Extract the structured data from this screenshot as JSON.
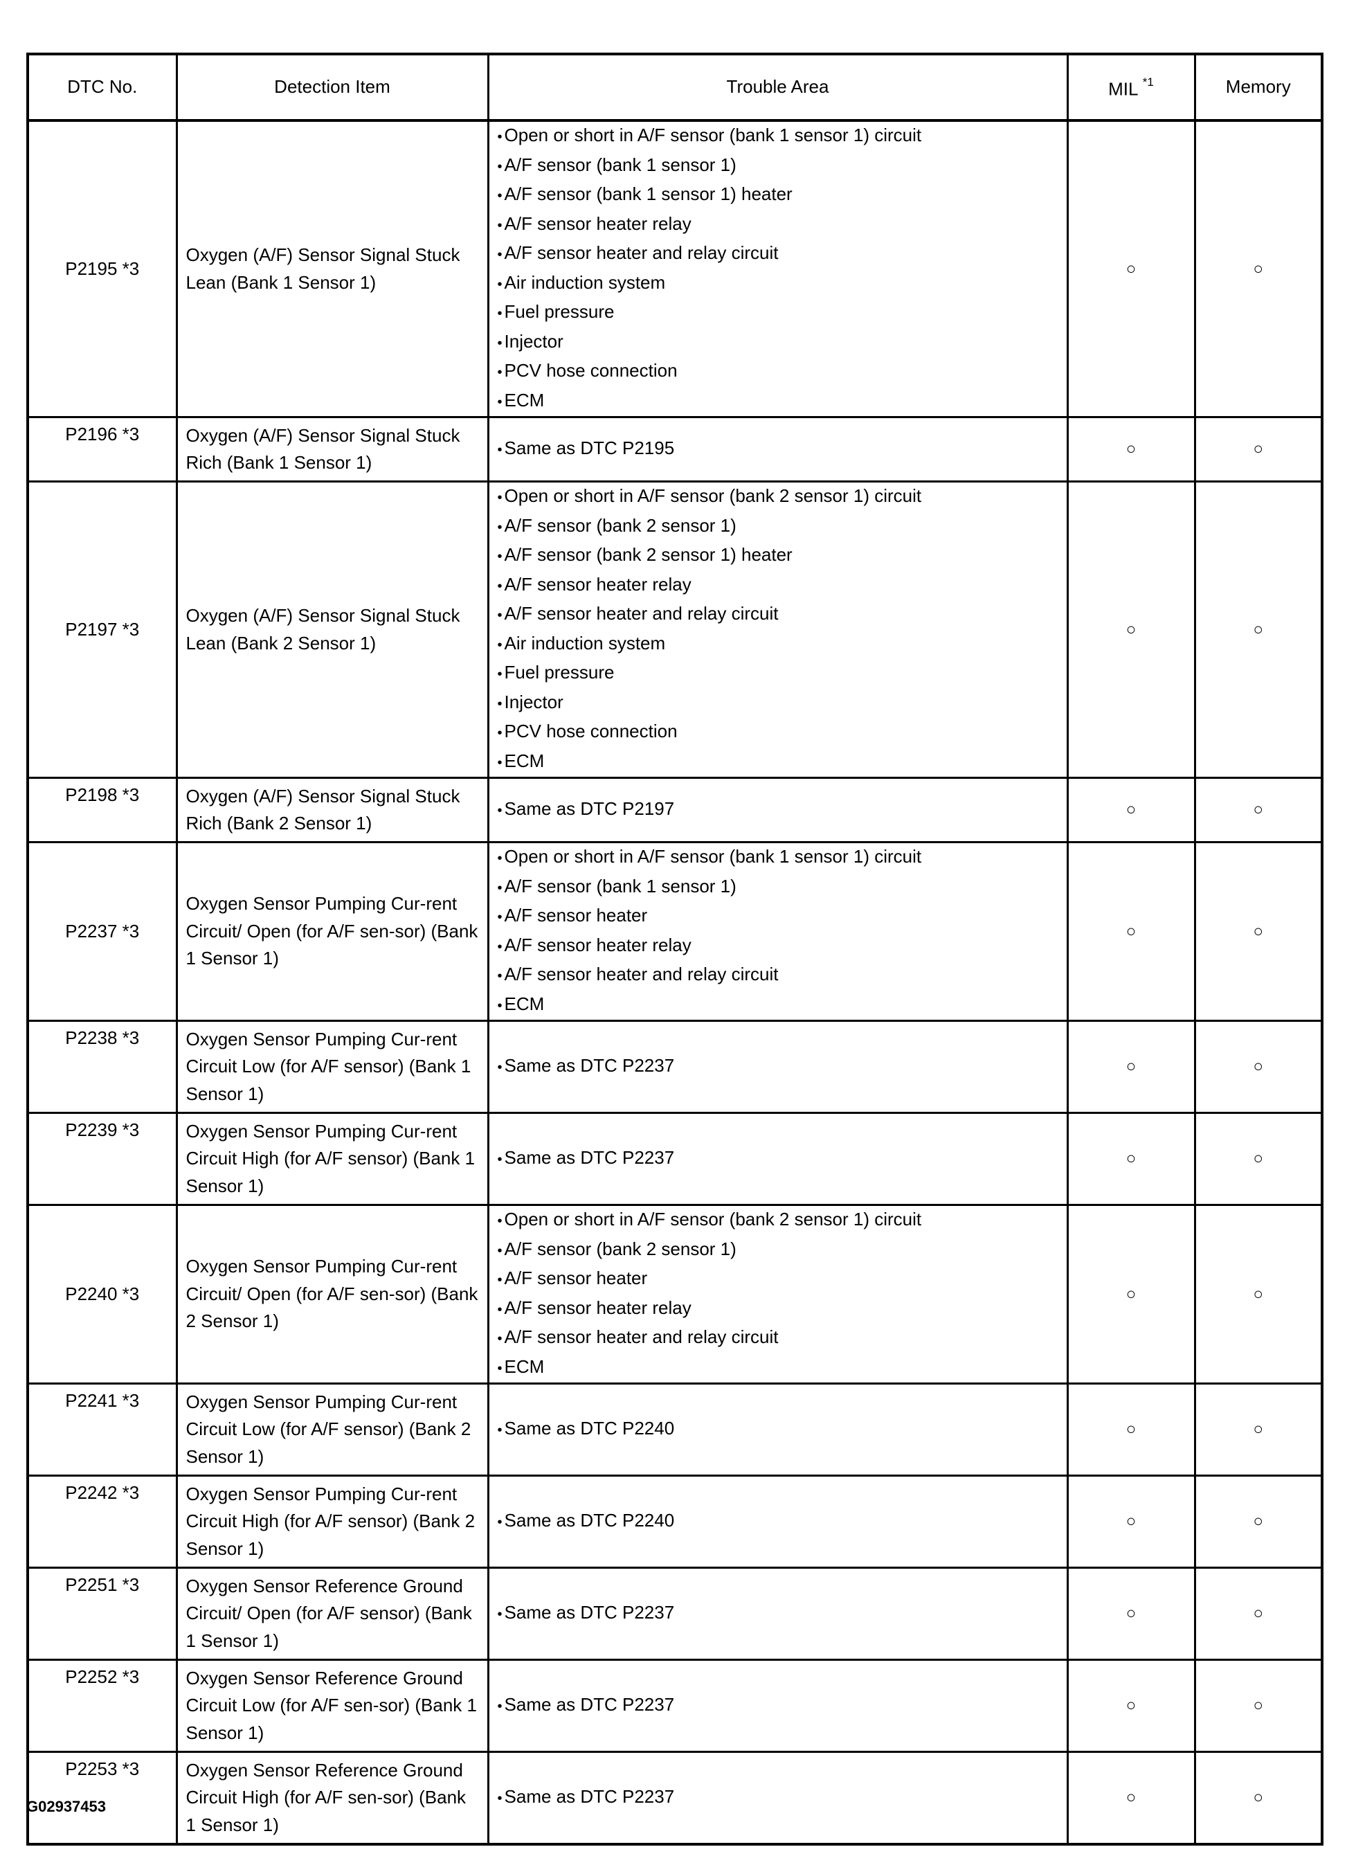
{
  "headers": {
    "dtc": "DTC No.",
    "detection": "Detection Item",
    "trouble": "Trouble Area",
    "mil": "MIL",
    "mil_note": "*1",
    "memory": "Memory"
  },
  "rows": [
    {
      "dtc": "P2195 *3",
      "detection": "Oxygen (A/F) Sensor Signal Stuck Lean (Bank 1 Sensor 1)",
      "trouble": [
        "Open or short in A/F sensor (bank 1 sensor 1) circuit",
        "A/F sensor (bank 1 sensor 1)",
        "A/F sensor (bank 1 sensor 1) heater",
        "A/F sensor heater relay",
        "A/F sensor heater and relay circuit",
        "Air induction system",
        "Fuel pressure",
        "Injector",
        "PCV hose connection",
        "ECM"
      ],
      "mil": "○",
      "memory": "○"
    },
    {
      "dtc": "P2196 *3",
      "detection": "Oxygen (A/F) Sensor Signal Stuck Rich (Bank 1 Sensor 1)",
      "trouble": [
        "Same as DTC P2195"
      ],
      "mil": "○",
      "memory": "○"
    },
    {
      "dtc": "P2197 *3",
      "detection": "Oxygen (A/F) Sensor Signal Stuck Lean (Bank 2 Sensor 1)",
      "trouble": [
        "Open or short in A/F sensor (bank 2 sensor 1) circuit",
        "A/F sensor (bank 2 sensor 1)",
        "A/F sensor (bank 2 sensor 1) heater",
        "A/F sensor heater relay",
        "A/F sensor heater and relay circuit",
        "Air induction system",
        "Fuel pressure",
        "Injector",
        "PCV hose connection",
        "ECM"
      ],
      "mil": "○",
      "memory": "○"
    },
    {
      "dtc": "P2198 *3",
      "detection": "Oxygen (A/F) Sensor Signal Stuck Rich (Bank 2 Sensor 1)",
      "trouble": [
        "Same as DTC P2197"
      ],
      "mil": "○",
      "memory": "○"
    },
    {
      "dtc": "P2237 *3",
      "detection": "Oxygen Sensor Pumping Cur-rent Circuit/ Open (for A/F sen-sor) (Bank 1 Sensor 1)",
      "trouble": [
        "Open or short in A/F sensor (bank 1 sensor 1) circuit",
        "A/F sensor (bank 1 sensor 1)",
        "A/F sensor heater",
        "A/F sensor heater relay",
        "A/F sensor heater and relay circuit",
        "ECM"
      ],
      "mil": "○",
      "memory": "○"
    },
    {
      "dtc": "P2238 *3",
      "detection": "Oxygen Sensor Pumping Cur-rent Circuit Low (for A/F sensor) (Bank 1 Sensor 1)",
      "trouble": [
        "Same as DTC P2237"
      ],
      "mil": "○",
      "memory": "○"
    },
    {
      "dtc": "P2239 *3",
      "detection": "Oxygen Sensor Pumping Cur-rent Circuit High (for A/F sensor) (Bank 1 Sensor 1)",
      "trouble": [
        "Same as DTC P2237"
      ],
      "mil": "○",
      "memory": "○"
    },
    {
      "dtc": "P2240 *3",
      "detection": "Oxygen Sensor Pumping Cur-rent Circuit/ Open (for A/F sen-sor) (Bank 2 Sensor 1)",
      "trouble": [
        "Open or short in A/F sensor (bank 2 sensor 1) circuit",
        "A/F sensor (bank 2 sensor 1)",
        "A/F sensor heater",
        "A/F sensor heater relay",
        "A/F sensor heater and relay circuit",
        "ECM"
      ],
      "mil": "○",
      "memory": "○"
    },
    {
      "dtc": "P2241 *3",
      "detection": "Oxygen Sensor Pumping Cur-rent Circuit Low (for A/F sensor) (Bank 2 Sensor 1)",
      "trouble": [
        "Same as DTC P2240"
      ],
      "mil": "○",
      "memory": "○"
    },
    {
      "dtc": "P2242 *3",
      "detection": "Oxygen Sensor Pumping Cur-rent Circuit High (for A/F sensor) (Bank 2 Sensor 1)",
      "trouble": [
        "Same as DTC P2240"
      ],
      "mil": "○",
      "memory": "○"
    },
    {
      "dtc": "P2251 *3",
      "detection": "Oxygen Sensor Reference Ground Circuit/ Open (for A/F sensor) (Bank 1 Sensor 1)",
      "trouble": [
        "Same as DTC P2237"
      ],
      "mil": "○",
      "memory": "○"
    },
    {
      "dtc": "P2252 *3",
      "detection": "Oxygen Sensor Reference Ground Circuit Low (for A/F sen-sor) (Bank 1 Sensor 1)",
      "trouble": [
        "Same as DTC P2237"
      ],
      "mil": "○",
      "memory": "○"
    },
    {
      "dtc": "P2253 *3",
      "detection": "Oxygen Sensor Reference Ground Circuit High (for A/F sen-sor) (Bank 1 Sensor 1)",
      "trouble": [
        "Same as DTC P2237"
      ],
      "mil": "○",
      "memory": "○"
    }
  ],
  "figure_id": "G02937453"
}
